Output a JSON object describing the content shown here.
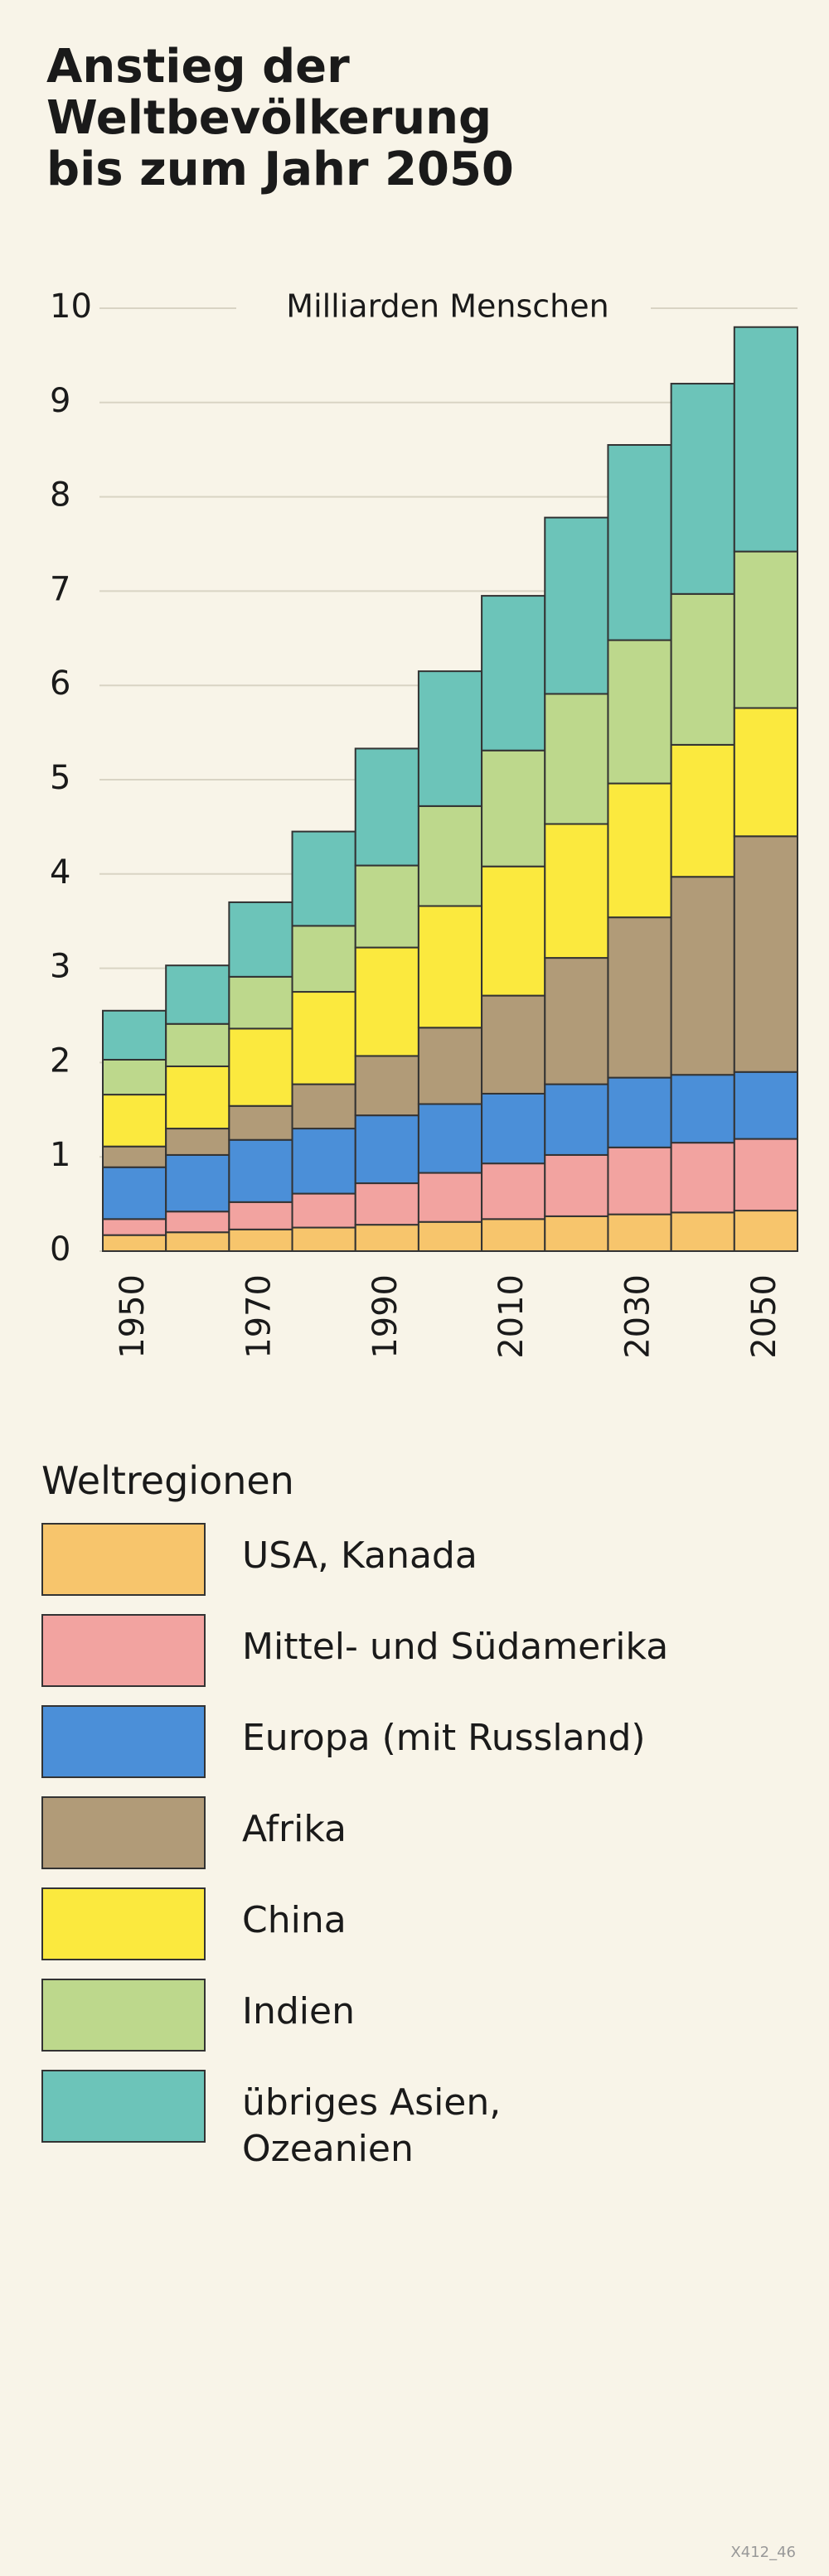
{
  "chart_data": {
    "type": "stacked-bar",
    "title": "Anstieg der Weltbevölkerung bis zum Jahr 2050",
    "y_axis_label": "Milliarden Menschen",
    "categories": [
      "1950",
      null,
      "1970",
      null,
      "1990",
      null,
      "2010",
      null,
      "2030",
      null,
      "2050"
    ],
    "series": [
      {
        "name": "USA, Kanada",
        "color": "#f7c56c",
        "values": [
          0.17,
          0.2,
          0.23,
          0.25,
          0.28,
          0.31,
          0.34,
          0.37,
          0.39,
          0.41,
          0.43
        ]
      },
      {
        "name": "Mittel- und Südamerika",
        "color": "#f2a3a0",
        "values": [
          0.17,
          0.22,
          0.29,
          0.36,
          0.44,
          0.52,
          0.59,
          0.65,
          0.71,
          0.74,
          0.76
        ]
      },
      {
        "name": "Europa (mit Russland)",
        "color": "#4b8fd8",
        "values": [
          0.55,
          0.6,
          0.66,
          0.69,
          0.72,
          0.73,
          0.74,
          0.75,
          0.74,
          0.72,
          0.71
        ]
      },
      {
        "name": "Afrika",
        "color": "#b19b78",
        "values": [
          0.22,
          0.28,
          0.36,
          0.47,
          0.63,
          0.81,
          1.04,
          1.34,
          1.7,
          2.1,
          2.5
        ]
      },
      {
        "name": "China",
        "color": "#fbe93e",
        "values": [
          0.55,
          0.66,
          0.82,
          0.98,
          1.15,
          1.29,
          1.37,
          1.42,
          1.42,
          1.4,
          1.36
        ]
      },
      {
        "name": "Indien",
        "color": "#bdd88c",
        "values": [
          0.37,
          0.45,
          0.55,
          0.7,
          0.87,
          1.06,
          1.23,
          1.38,
          1.52,
          1.6,
          1.66
        ]
      },
      {
        "name": "übriges Asien, Ozeanien",
        "color": "#6cc4b9",
        "values": [
          0.52,
          0.62,
          0.79,
          1.0,
          1.24,
          1.43,
          1.64,
          1.87,
          2.07,
          2.23,
          2.38
        ]
      }
    ],
    "ylim": [
      0,
      10
    ],
    "yticks": [
      0,
      1,
      2,
      3,
      4,
      5,
      6,
      7,
      8,
      9,
      10
    ],
    "grid": true,
    "legend_title": "Weltregionen",
    "footnote": "X412_46"
  }
}
